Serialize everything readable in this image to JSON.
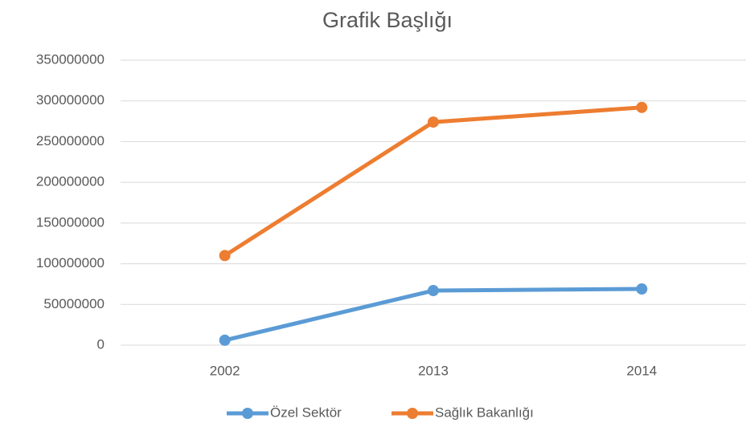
{
  "chart_data": {
    "type": "line",
    "title": "Grafik Başlığı",
    "categories": [
      "2002",
      "2013",
      "2014"
    ],
    "series": [
      {
        "name": "Özel Sektör",
        "color": "#5b9bd5",
        "values": [
          6000000,
          67000000,
          69000000
        ]
      },
      {
        "name": "Sağlık Bakanlığı",
        "color": "#ed7d31",
        "values": [
          110000000,
          274000000,
          292000000
        ]
      }
    ],
    "ylim": [
      0,
      350000000
    ],
    "yticks": [
      0,
      50000000,
      100000000,
      150000000,
      200000000,
      250000000,
      300000000,
      350000000
    ],
    "grid": true,
    "legend": "bottom"
  }
}
